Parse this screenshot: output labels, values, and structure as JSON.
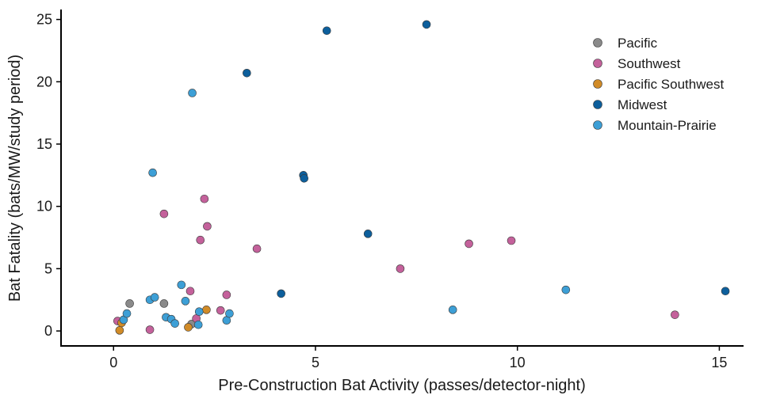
{
  "chart_data": {
    "type": "scatter",
    "title": "",
    "xlabel": "Pre-Construction Bat Activity (passes/detector-night)",
    "ylabel": "Bat Fatality (bats/MW/study period)",
    "xlim": [
      -1.3,
      15.6
    ],
    "ylim": [
      -1.2,
      25.8
    ],
    "xticks": [
      0,
      5,
      10,
      15
    ],
    "yticks": [
      0,
      5,
      10,
      15,
      20,
      25
    ],
    "grid": false,
    "legend_position": "top-right",
    "series": [
      {
        "name": "Pacific",
        "color": "#8a8a8a",
        "points": [
          [
            0.4,
            2.2
          ],
          [
            1.25,
            2.2
          ],
          [
            1.93,
            0.55
          ]
        ]
      },
      {
        "name": "Southwest",
        "color": "#c4619b",
        "points": [
          [
            0.1,
            0.8
          ],
          [
            0.9,
            0.1
          ],
          [
            1.25,
            9.4
          ],
          [
            1.9,
            3.2
          ],
          [
            2.05,
            1.0
          ],
          [
            2.15,
            7.3
          ],
          [
            2.25,
            10.6
          ],
          [
            2.32,
            8.4
          ],
          [
            2.65,
            1.65
          ],
          [
            2.8,
            2.9
          ],
          [
            3.55,
            6.6
          ],
          [
            7.1,
            5.0
          ],
          [
            8.8,
            7.0
          ],
          [
            9.85,
            7.25
          ],
          [
            13.9,
            1.3
          ]
        ]
      },
      {
        "name": "Pacific Southwest",
        "color": "#d18b27",
        "points": [
          [
            0.15,
            0.05
          ],
          [
            0.2,
            0.65
          ],
          [
            1.85,
            0.3
          ],
          [
            2.3,
            1.7
          ]
        ]
      },
      {
        "name": "Midwest",
        "color": "#0d5f9c",
        "points": [
          [
            3.3,
            20.7
          ],
          [
            4.15,
            3.0
          ],
          [
            4.7,
            12.5
          ],
          [
            4.72,
            12.25
          ],
          [
            5.28,
            24.1
          ],
          [
            6.3,
            7.8
          ],
          [
            7.75,
            24.6
          ],
          [
            15.15,
            3.2
          ]
        ]
      },
      {
        "name": "Mountain-Prairie",
        "color": "#3d9fd6",
        "points": [
          [
            0.25,
            0.9
          ],
          [
            0.33,
            1.4
          ],
          [
            0.9,
            2.5
          ],
          [
            0.97,
            12.7
          ],
          [
            1.02,
            2.7
          ],
          [
            1.3,
            1.1
          ],
          [
            1.43,
            0.95
          ],
          [
            1.52,
            0.6
          ],
          [
            1.68,
            3.7
          ],
          [
            1.78,
            2.4
          ],
          [
            1.95,
            19.1
          ],
          [
            2.1,
            0.5
          ],
          [
            2.12,
            1.55
          ],
          [
            2.8,
            0.85
          ],
          [
            2.87,
            1.4
          ],
          [
            8.4,
            1.7
          ],
          [
            11.2,
            3.3
          ]
        ]
      }
    ]
  }
}
